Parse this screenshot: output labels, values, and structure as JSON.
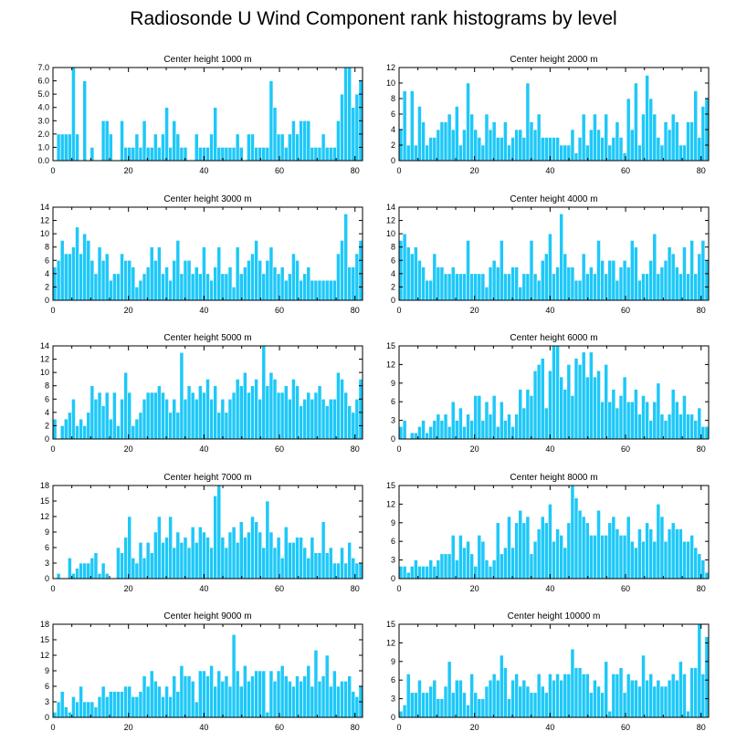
{
  "figure_title": "Radiosonde U Wind Component rank histograms by level",
  "colors": {
    "bar": "#1ec8f8",
    "bar_edge": "#ffffff",
    "axis": "#000000"
  },
  "chart_data": [
    {
      "type": "bar",
      "title": "Center height 1000 m",
      "xlim": [
        0,
        82
      ],
      "ylim": [
        0,
        7
      ],
      "xticks": [
        0,
        20,
        40,
        60,
        80
      ],
      "yticks": [
        0,
        1,
        2,
        3,
        4,
        5,
        6,
        7
      ],
      "yticklabels": [
        "0.0",
        "1.0",
        "2.0",
        "3.0",
        "4.0",
        "5.0",
        "6.0",
        "7.0"
      ],
      "values": [
        0,
        2,
        2,
        2,
        2,
        7,
        2,
        0,
        6,
        0,
        1,
        0,
        0,
        3,
        3,
        2,
        0,
        0,
        3,
        1,
        1,
        1,
        2,
        1,
        3,
        1,
        1,
        2,
        1,
        2,
        4,
        1,
        3,
        2,
        1,
        1,
        0,
        0,
        2,
        1,
        1,
        1,
        2,
        4,
        1,
        1,
        1,
        1,
        1,
        2,
        1,
        0,
        2,
        2,
        1,
        1,
        1,
        1,
        6,
        4,
        2,
        2,
        1,
        2,
        3,
        2,
        3,
        3,
        3,
        1,
        1,
        1,
        2,
        1,
        1,
        1,
        3,
        5,
        7,
        7,
        4,
        5,
        6
      ]
    },
    {
      "type": "bar",
      "title": "Center height 2000 m",
      "xlim": [
        0,
        82
      ],
      "ylim": [
        0,
        12
      ],
      "xticks": [
        0,
        20,
        40,
        60,
        80
      ],
      "yticks": [
        0,
        2,
        4,
        6,
        8,
        10,
        12
      ],
      "yticklabels": [
        "0",
        "2",
        "4",
        "6",
        "8",
        "10",
        "12"
      ],
      "values": [
        4,
        9,
        2,
        9,
        2,
        7,
        5,
        2,
        3,
        3,
        4,
        5,
        5,
        6,
        4,
        7,
        2,
        4,
        10,
        6,
        4,
        3,
        2,
        6,
        4,
        5,
        3,
        3,
        5,
        2,
        3,
        4,
        4,
        3,
        10,
        5,
        4,
        6,
        3,
        3,
        3,
        3,
        3,
        2,
        2,
        2,
        4,
        1,
        3,
        6,
        2,
        4,
        6,
        4,
        3,
        6,
        2,
        3,
        5,
        3,
        1,
        8,
        4,
        10,
        2,
        6,
        11,
        8,
        6,
        3,
        2,
        5,
        4,
        6,
        5,
        2,
        2,
        5,
        5,
        9,
        3,
        7,
        8
      ]
    },
    {
      "type": "bar",
      "title": "Center height 3000 m",
      "xlim": [
        0,
        82
      ],
      "ylim": [
        0,
        14
      ],
      "xticks": [
        0,
        20,
        40,
        60,
        80
      ],
      "yticks": [
        0,
        2,
        4,
        6,
        8,
        10,
        12,
        14
      ],
      "yticklabels": [
        "0",
        "2",
        "4",
        "6",
        "8",
        "10",
        "12",
        "14"
      ],
      "values": [
        5,
        6,
        9,
        7,
        7,
        8,
        11,
        7,
        10,
        9,
        6,
        4,
        8,
        6,
        7,
        3,
        4,
        4,
        7,
        6,
        6,
        5,
        2,
        3,
        4,
        5,
        8,
        6,
        8,
        4,
        5,
        3,
        6,
        9,
        4,
        6,
        6,
        4,
        5,
        4,
        8,
        4,
        3,
        5,
        8,
        4,
        4,
        5,
        2,
        8,
        4,
        5,
        6,
        7,
        9,
        6,
        4,
        6,
        8,
        5,
        4,
        5,
        3,
        4,
        7,
        6,
        3,
        4,
        5,
        3,
        3,
        3,
        3,
        3,
        3,
        3,
        7,
        9,
        13,
        5,
        5,
        7,
        9
      ]
    },
    {
      "type": "bar",
      "title": "Center height 4000 m",
      "xlim": [
        0,
        82
      ],
      "ylim": [
        0,
        14
      ],
      "xticks": [
        0,
        20,
        40,
        60,
        80
      ],
      "yticks": [
        0,
        2,
        4,
        6,
        8,
        10,
        12,
        14
      ],
      "yticklabels": [
        "0",
        "2",
        "4",
        "6",
        "8",
        "10",
        "12",
        "14"
      ],
      "values": [
        9,
        10,
        8,
        7,
        8,
        6,
        5,
        3,
        3,
        7,
        5,
        5,
        4,
        4,
        5,
        4,
        4,
        4,
        9,
        4,
        4,
        4,
        4,
        2,
        5,
        6,
        5,
        9,
        4,
        4,
        5,
        5,
        2,
        4,
        4,
        9,
        4,
        3,
        6,
        7,
        10,
        4,
        5,
        13,
        7,
        5,
        5,
        3,
        3,
        7,
        4,
        5,
        4,
        9,
        6,
        4,
        6,
        6,
        3,
        5,
        6,
        5,
        9,
        8,
        3,
        4,
        4,
        6,
        10,
        4,
        5,
        6,
        8,
        7,
        5,
        4,
        8,
        4,
        9,
        4,
        7,
        9,
        6
      ]
    },
    {
      "type": "bar",
      "title": "Center height 5000 m",
      "xlim": [
        0,
        82
      ],
      "ylim": [
        0,
        14
      ],
      "xticks": [
        0,
        20,
        40,
        60,
        80
      ],
      "yticks": [
        0,
        2,
        4,
        6,
        8,
        10,
        12,
        14
      ],
      "yticklabels": [
        "0",
        "2",
        "4",
        "6",
        "8",
        "10",
        "12",
        "14"
      ],
      "values": [
        3,
        0,
        2,
        3,
        4,
        6,
        2,
        3,
        2,
        4,
        8,
        6,
        7,
        5,
        7,
        3,
        7,
        2,
        6,
        10,
        7,
        2,
        3,
        4,
        6,
        7,
        7,
        7,
        8,
        7,
        6,
        4,
        6,
        4,
        13,
        6,
        8,
        7,
        6,
        8,
        7,
        9,
        6,
        8,
        4,
        6,
        4,
        6,
        7,
        9,
        8,
        10,
        7,
        8,
        9,
        6,
        14,
        8,
        10,
        9,
        7,
        7,
        8,
        6,
        9,
        8,
        5,
        6,
        7,
        6,
        7,
        8,
        6,
        5,
        6,
        6,
        10,
        9,
        7,
        5,
        4,
        6,
        9
      ]
    },
    {
      "type": "bar",
      "title": "Center height 6000 m",
      "xlim": [
        0,
        82
      ],
      "ylim": [
        0,
        15
      ],
      "xticks": [
        0,
        20,
        40,
        60,
        80
      ],
      "yticks": [
        0,
        3,
        6,
        9,
        12,
        15
      ],
      "yticklabels": [
        "0",
        "3",
        "6",
        "9",
        "12",
        "15"
      ],
      "values": [
        2,
        3,
        0,
        1,
        1,
        2,
        3,
        1,
        2,
        3,
        4,
        3,
        4,
        2,
        6,
        3,
        5,
        2,
        4,
        3,
        7,
        7,
        3,
        6,
        4,
        7,
        2,
        6,
        3,
        4,
        2,
        4,
        8,
        5,
        8,
        7,
        11,
        12,
        13,
        5,
        11,
        15,
        15,
        10,
        8,
        12,
        7,
        13,
        12,
        14,
        10,
        14,
        10,
        11,
        6,
        12,
        6,
        8,
        5,
        7,
        10,
        6,
        6,
        8,
        4,
        7,
        6,
        3,
        6,
        9,
        4,
        3,
        4,
        8,
        6,
        4,
        7,
        4,
        4,
        3,
        5,
        2,
        2
      ]
    },
    {
      "type": "bar",
      "title": "Center height 7000 m",
      "xlim": [
        0,
        82
      ],
      "ylim": [
        0,
        18
      ],
      "xticks": [
        0,
        20,
        40,
        60,
        80
      ],
      "yticks": [
        0,
        3,
        6,
        9,
        12,
        15,
        18
      ],
      "yticklabels": [
        "0",
        "3",
        "6",
        "9",
        "12",
        "15",
        "18"
      ],
      "values": [
        0,
        1,
        0,
        0,
        4,
        1,
        2,
        3,
        3,
        3,
        4,
        5,
        1,
        3,
        1,
        0,
        0,
        6,
        5,
        8,
        12,
        4,
        3,
        7,
        4,
        7,
        5,
        9,
        12,
        7,
        8,
        12,
        6,
        9,
        7,
        8,
        6,
        10,
        7,
        10,
        9,
        8,
        6,
        16,
        18,
        8,
        6,
        9,
        10,
        7,
        11,
        8,
        9,
        12,
        11,
        9,
        6,
        15,
        9,
        6,
        8,
        4,
        10,
        7,
        7,
        8,
        8,
        6,
        4,
        8,
        5,
        5,
        11,
        5,
        6,
        3,
        3,
        6,
        3,
        7,
        4,
        3,
        3
      ]
    },
    {
      "type": "bar",
      "title": "Center height 8000 m",
      "xlim": [
        0,
        82
      ],
      "ylim": [
        0,
        15
      ],
      "xticks": [
        0,
        20,
        40,
        60,
        80
      ],
      "yticks": [
        0,
        3,
        6,
        9,
        12,
        15
      ],
      "yticklabels": [
        "0",
        "3",
        "6",
        "9",
        "12",
        "15"
      ],
      "values": [
        2,
        2,
        1,
        2,
        3,
        2,
        2,
        2,
        3,
        2,
        3,
        4,
        4,
        4,
        7,
        3,
        7,
        5,
        6,
        4,
        2,
        7,
        6,
        3,
        2,
        3,
        9,
        4,
        5,
        10,
        5,
        9,
        11,
        9,
        10,
        4,
        6,
        8,
        10,
        9,
        12,
        6,
        8,
        7,
        5,
        9,
        15,
        13,
        11,
        10,
        9,
        7,
        7,
        11,
        7,
        7,
        9,
        10,
        8,
        7,
        7,
        10,
        6,
        5,
        8,
        6,
        9,
        8,
        6,
        12,
        10,
        6,
        8,
        9,
        8,
        8,
        6,
        6,
        7,
        5,
        4,
        3,
        1
      ]
    },
    {
      "type": "bar",
      "title": "Center height 9000 m",
      "xlim": [
        0,
        82
      ],
      "ylim": [
        0,
        18
      ],
      "xticks": [
        0,
        20,
        40,
        60,
        80
      ],
      "yticks": [
        0,
        3,
        6,
        9,
        12,
        15,
        18
      ],
      "yticklabels": [
        "0",
        "3",
        "6",
        "9",
        "12",
        "15",
        "18"
      ],
      "values": [
        1,
        3,
        5,
        2,
        1,
        4,
        3,
        6,
        3,
        3,
        3,
        2,
        4,
        6,
        4,
        5,
        5,
        5,
        5,
        6,
        6,
        4,
        4,
        5,
        8,
        6,
        9,
        7,
        6,
        4,
        6,
        4,
        8,
        5,
        10,
        8,
        8,
        7,
        3,
        9,
        9,
        8,
        10,
        6,
        9,
        7,
        8,
        6,
        16,
        9,
        6,
        10,
        7,
        8,
        9,
        9,
        9,
        1,
        9,
        7,
        9,
        10,
        8,
        7,
        6,
        8,
        7,
        8,
        10,
        6,
        13,
        7,
        8,
        12,
        6,
        9,
        6,
        7,
        7,
        8,
        5,
        4,
        6
      ]
    },
    {
      "type": "bar",
      "title": "Center height 10000 m",
      "xlim": [
        0,
        82
      ],
      "ylim": [
        0,
        15
      ],
      "xticks": [
        0,
        20,
        40,
        60,
        80
      ],
      "yticks": [
        0,
        3,
        6,
        9,
        12,
        15
      ],
      "yticklabels": [
        "0",
        "3",
        "6",
        "9",
        "12",
        "15"
      ],
      "values": [
        1,
        2,
        7,
        4,
        4,
        6,
        4,
        4,
        5,
        6,
        3,
        3,
        5,
        9,
        4,
        6,
        6,
        4,
        2,
        7,
        4,
        3,
        3,
        5,
        6,
        7,
        6,
        10,
        8,
        3,
        6,
        7,
        5,
        6,
        5,
        4,
        4,
        7,
        5,
        4,
        7,
        6,
        7,
        6,
        7,
        7,
        11,
        8,
        8,
        7,
        7,
        4,
        6,
        5,
        4,
        9,
        1,
        7,
        7,
        8,
        4,
        7,
        6,
        6,
        5,
        10,
        6,
        7,
        5,
        6,
        5,
        5,
        6,
        7,
        6,
        9,
        7,
        1,
        8,
        8,
        15,
        7,
        13
      ]
    }
  ]
}
